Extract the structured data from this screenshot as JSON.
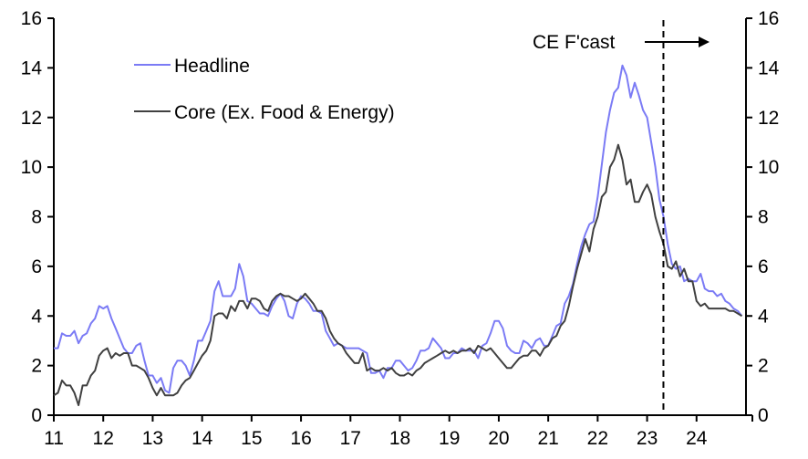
{
  "chart_data": {
    "type": "line",
    "title": "",
    "xlabel": "",
    "ylabel": "",
    "xlim": [
      11,
      25
    ],
    "ylim": [
      0,
      16
    ],
    "x_ticks": [
      "11",
      "12",
      "13",
      "14",
      "15",
      "16",
      "17",
      "18",
      "19",
      "20",
      "21",
      "22",
      "23",
      "24"
    ],
    "y_ticks": [
      "0",
      "2",
      "4",
      "6",
      "8",
      "10",
      "12",
      "14",
      "16"
    ],
    "grid": false,
    "legend_position": "top-left",
    "forecast_start": 23.33,
    "annotation": "CE F'cast",
    "start_year": 11,
    "series": [
      {
        "name": "Headline",
        "color": "#7b7bf5",
        "values": [
          2.7,
          2.7,
          3.3,
          3.2,
          3.2,
          3.4,
          2.9,
          3.2,
          3.3,
          3.7,
          3.9,
          4.4,
          4.3,
          4.4,
          3.9,
          3.5,
          3.1,
          2.7,
          2.5,
          2.5,
          2.8,
          2.9,
          2.2,
          1.6,
          1.6,
          1.3,
          1.5,
          1.0,
          0.9,
          1.9,
          2.2,
          2.2,
          2.0,
          1.6,
          2.2,
          3.0,
          3.0,
          3.4,
          3.8,
          5.0,
          5.4,
          4.8,
          4.8,
          4.8,
          5.1,
          6.1,
          5.6,
          4.6,
          4.5,
          4.3,
          4.1,
          4.1,
          4.0,
          4.4,
          4.7,
          4.9,
          4.6,
          4.0,
          3.9,
          4.5,
          4.8,
          4.7,
          4.5,
          4.2,
          4.2,
          4.1,
          3.4,
          3.1,
          2.8,
          2.9,
          2.8,
          2.7,
          2.7,
          2.7,
          2.7,
          2.6,
          2.5,
          1.7,
          1.7,
          1.8,
          1.5,
          1.9,
          1.9,
          2.2,
          2.2,
          2.0,
          1.8,
          1.9,
          2.2,
          2.6,
          2.6,
          2.7,
          3.1,
          2.9,
          2.7,
          2.3,
          2.3,
          2.5,
          2.5,
          2.7,
          2.6,
          2.6,
          2.6,
          2.3,
          2.8,
          2.9,
          3.3,
          3.8,
          3.8,
          3.5,
          2.8,
          2.6,
          2.5,
          2.5,
          3.0,
          2.9,
          2.7,
          3.0,
          3.1,
          2.8,
          2.8,
          3.2,
          3.6,
          3.7,
          4.5,
          4.8,
          5.3,
          6.1,
          6.8,
          7.3,
          7.7,
          7.8,
          8.8,
          10.1,
          11.4,
          12.3,
          13.0,
          13.2,
          14.1,
          13.7,
          12.8,
          13.4,
          12.9,
          12.3,
          12.0,
          11.0,
          10.0,
          8.7,
          8.0,
          6.9,
          6.1,
          5.9,
          6.0,
          5.4,
          5.5,
          5.4,
          5.4,
          5.7,
          5.1,
          5.0,
          5.0,
          4.8,
          4.9,
          4.6,
          4.5,
          4.3,
          4.2,
          4.0
        ]
      },
      {
        "name": "Core (Ex. Food & Energy)",
        "color": "#404040",
        "values": [
          0.8,
          0.9,
          1.4,
          1.2,
          1.2,
          0.9,
          0.4,
          1.2,
          1.2,
          1.6,
          1.8,
          2.4,
          2.6,
          2.7,
          2.3,
          2.5,
          2.4,
          2.5,
          2.5,
          2.0,
          2.0,
          1.9,
          1.8,
          1.5,
          1.1,
          0.8,
          1.1,
          0.8,
          0.8,
          0.8,
          0.9,
          1.2,
          1.4,
          1.5,
          1.8,
          2.1,
          2.4,
          2.6,
          3.0,
          4.0,
          4.1,
          4.1,
          3.9,
          4.4,
          4.2,
          4.6,
          4.6,
          4.3,
          4.7,
          4.7,
          4.6,
          4.3,
          4.2,
          4.6,
          4.8,
          4.9,
          4.8,
          4.8,
          4.7,
          4.6,
          4.7,
          4.9,
          4.7,
          4.5,
          4.2,
          4.2,
          3.9,
          3.4,
          3.1,
          2.9,
          2.8,
          2.5,
          2.3,
          2.1,
          2.1,
          2.5,
          1.8,
          1.9,
          1.8,
          1.8,
          1.9,
          1.8,
          1.9,
          1.7,
          1.6,
          1.6,
          1.7,
          1.6,
          1.8,
          1.9,
          2.1,
          2.2,
          2.3,
          2.4,
          2.5,
          2.6,
          2.5,
          2.6,
          2.5,
          2.6,
          2.6,
          2.7,
          2.5,
          2.8,
          2.7,
          2.6,
          2.7,
          2.5,
          2.3,
          2.1,
          1.9,
          1.9,
          2.1,
          2.3,
          2.4,
          2.4,
          2.6,
          2.6,
          2.4,
          2.7,
          2.8,
          3.1,
          3.2,
          3.6,
          3.8,
          4.4,
          5.2,
          5.9,
          6.5,
          7.1,
          6.6,
          7.5,
          8.0,
          8.8,
          9.0,
          10.0,
          10.3,
          10.9,
          10.3,
          9.3,
          9.5,
          8.6,
          8.6,
          9.0,
          9.3,
          8.9,
          8.0,
          7.4,
          6.9,
          6.0,
          5.9,
          6.2,
          5.6,
          5.9,
          5.4,
          5.4,
          4.6,
          4.4,
          4.5,
          4.3,
          4.3,
          4.3,
          4.3,
          4.3,
          4.2,
          4.2,
          4.1,
          4.0
        ]
      }
    ]
  }
}
